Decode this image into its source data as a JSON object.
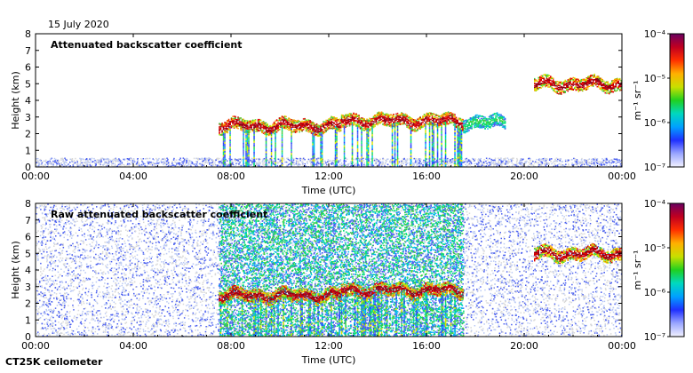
{
  "date": "15 July 2020",
  "instrument": "CT25K ceilometer",
  "chart_data": [
    {
      "type": "heatmap",
      "title": "Attenuated backscatter coefficient",
      "xlabel": "Time (UTC)",
      "ylabel": "Height (km)",
      "x_ticks": [
        "00:00",
        "04:00",
        "08:00",
        "12:00",
        "16:00",
        "20:00",
        "00:00"
      ],
      "y_ticks": [
        "0",
        "1",
        "2",
        "3",
        "4",
        "5",
        "6",
        "7",
        "8"
      ],
      "xlim_hours": [
        0,
        24
      ],
      "ylim": [
        0,
        8
      ],
      "colorbar": {
        "scale": "log",
        "ticks": [
          "10⁻⁴",
          "10⁻⁵",
          "10⁻⁶",
          "10⁻⁷"
        ],
        "units": "m⁻¹ sr⁻¹"
      },
      "features": [
        {
          "name": "noise floor",
          "from_hour": 0,
          "to_hour": 24,
          "height_km": 0.3,
          "level": "low"
        },
        {
          "name": "boundary layer top",
          "from_hour": 7.5,
          "to_hour": 12.5,
          "height_km": 2.5,
          "level": "high"
        },
        {
          "name": "boundary layer top",
          "from_hour": 12.5,
          "to_hour": 17.5,
          "height_km": 2.8,
          "level": "high"
        },
        {
          "name": "aerosol layer",
          "from_hour": 17.5,
          "to_hour": 19.2,
          "height_km": 2.7,
          "level": "medium"
        },
        {
          "name": "elevated cloud",
          "from_hour": 20.4,
          "to_hour": 24,
          "height_km": 5.0,
          "level": "high"
        }
      ]
    },
    {
      "type": "heatmap",
      "title": "Raw attenuated backscatter coefficient",
      "xlabel": "Time (UTC)",
      "ylabel": "Height (km)",
      "x_ticks": [
        "00:00",
        "04:00",
        "08:00",
        "12:00",
        "16:00",
        "20:00",
        "00:00"
      ],
      "y_ticks": [
        "0",
        "1",
        "2",
        "3",
        "4",
        "5",
        "6",
        "7",
        "8"
      ],
      "xlim_hours": [
        0,
        24
      ],
      "ylim": [
        0,
        8
      ],
      "colorbar": {
        "scale": "log",
        "ticks": [
          "10⁻⁴",
          "10⁻⁵",
          "10⁻⁶",
          "10⁻⁷"
        ],
        "units": "m⁻¹ sr⁻¹"
      },
      "features": [
        {
          "name": "background noise",
          "from_hour": 0,
          "to_hour": 24,
          "height_km": 4,
          "level": "low"
        },
        {
          "name": "daytime noise",
          "from_hour": 7.5,
          "to_hour": 17.5,
          "height_km": 4,
          "level": "medium"
        },
        {
          "name": "boundary layer top",
          "from_hour": 7.5,
          "to_hour": 12.5,
          "height_km": 2.5,
          "level": "high"
        },
        {
          "name": "boundary layer top",
          "from_hour": 12.5,
          "to_hour": 17.5,
          "height_km": 2.8,
          "level": "high"
        },
        {
          "name": "elevated cloud",
          "from_hour": 20.4,
          "to_hour": 24,
          "height_km": 5.0,
          "level": "high"
        }
      ]
    }
  ]
}
